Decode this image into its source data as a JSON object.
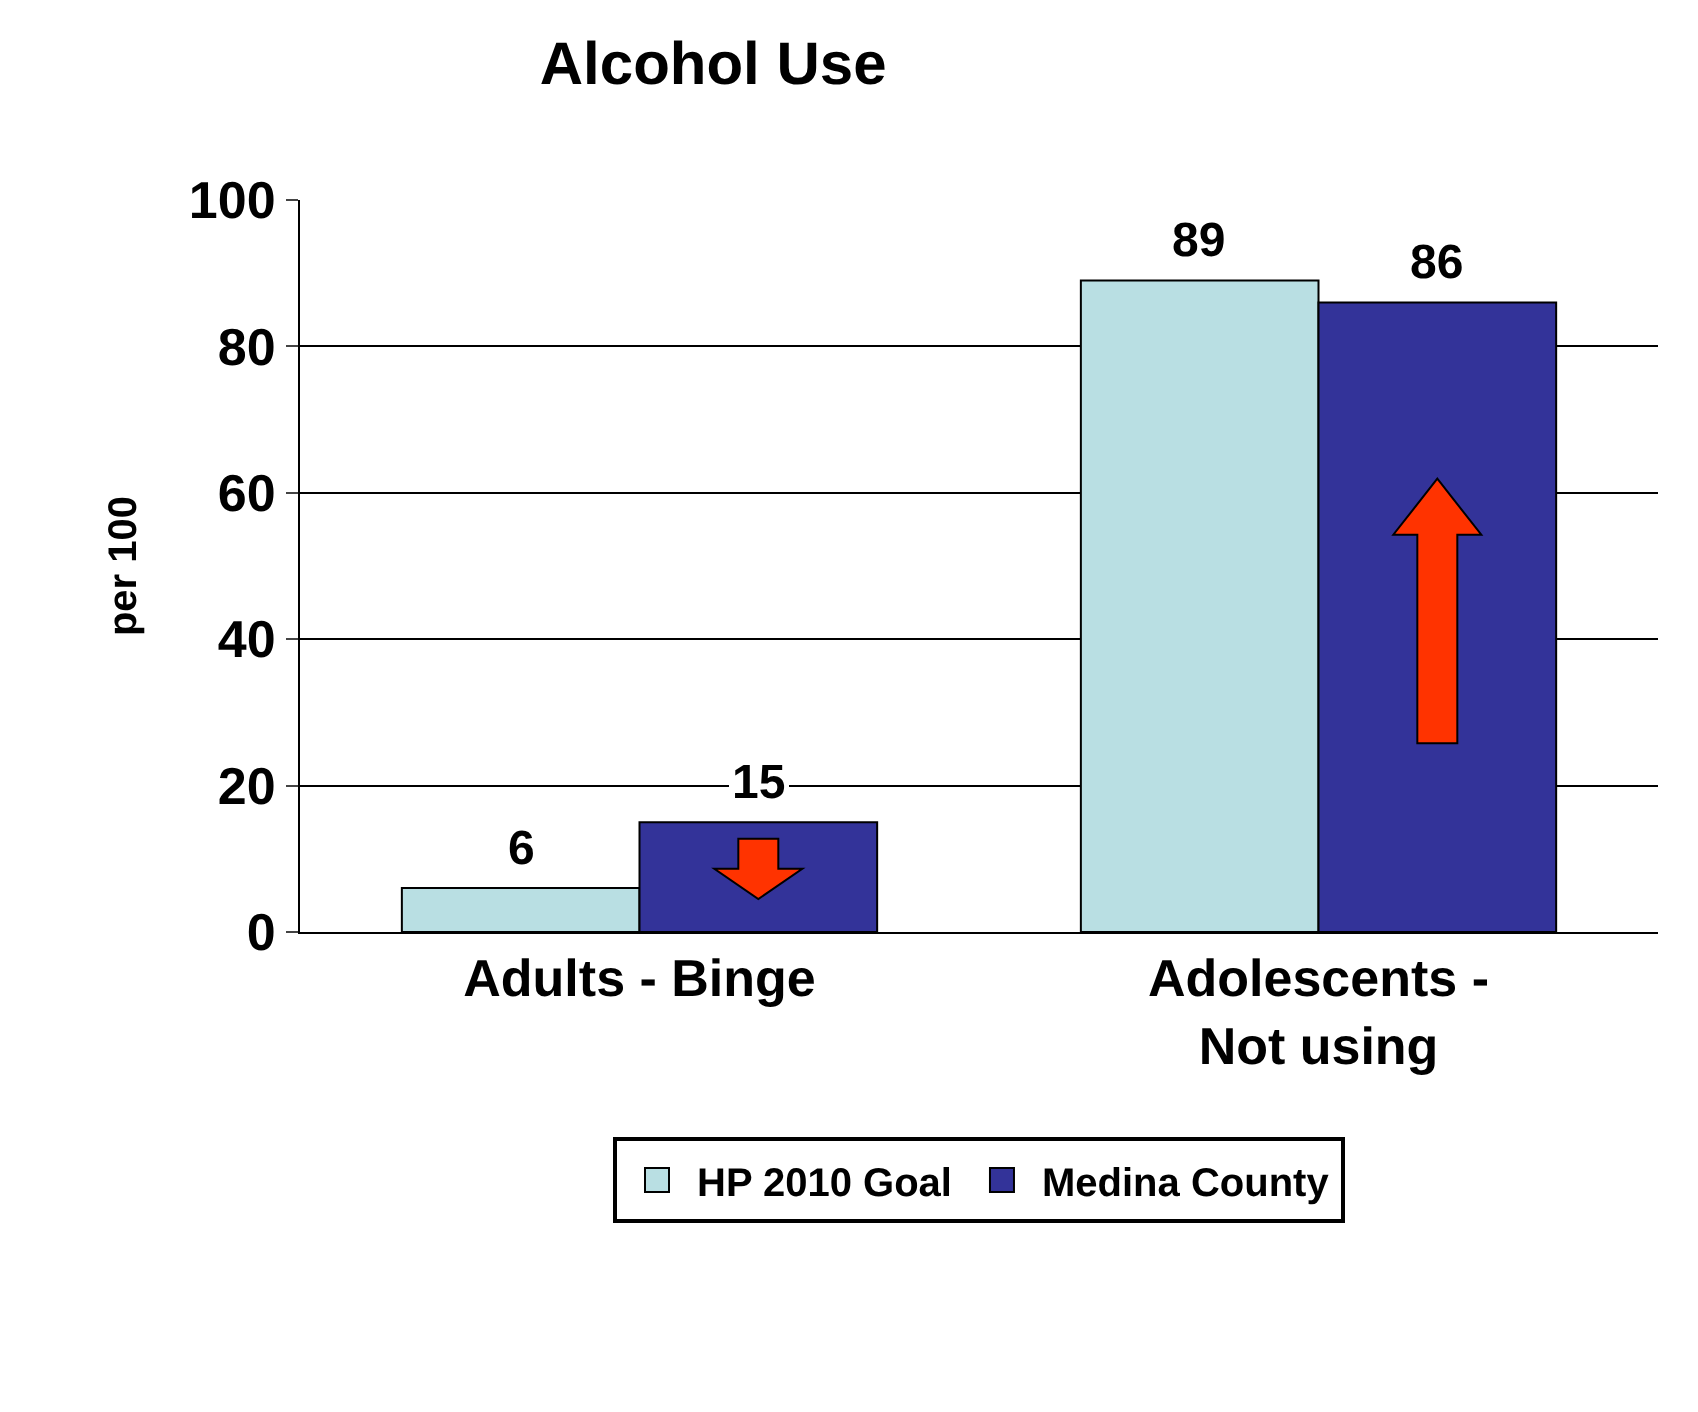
{
  "chart_data": {
    "type": "bar",
    "title": "Alcohol Use",
    "ylabel": "per 100",
    "categories": [
      "Adults - Binge",
      "Adolescents -\nNot using"
    ],
    "series": [
      {
        "name": "HP 2010 Goal",
        "color": "#b9dfe3",
        "values": [
          6,
          89
        ]
      },
      {
        "name": "Medina County",
        "color": "#333399",
        "values": [
          15,
          86
        ]
      }
    ],
    "ylim": [
      0,
      100
    ],
    "yticks": [
      0,
      20,
      40,
      60,
      80,
      100
    ],
    "grid": "y",
    "legend": "bottom",
    "data_labels": true
  }
}
